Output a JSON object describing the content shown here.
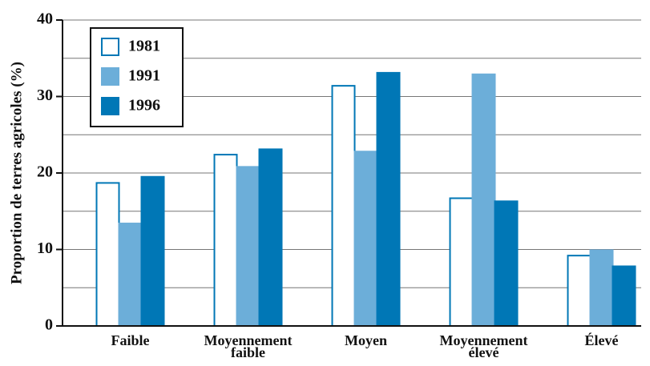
{
  "chart_data": {
    "type": "bar",
    "y_label": "Proportion de terres agricoles (%)",
    "categories": [
      "Faible",
      "Moyennement faible",
      "Moyen",
      "Moyennement élevé",
      "Élevé"
    ],
    "series": [
      {
        "name": "1981",
        "color": "#ffffff",
        "edge": "#0077b6",
        "values": [
          18.7,
          22.4,
          31.4,
          16.7,
          9.2
        ]
      },
      {
        "name": "1991",
        "color": "#6caed9",
        "edge": "#6caed9",
        "values": [
          13.4,
          20.8,
          22.8,
          32.9,
          9.9
        ]
      },
      {
        "name": "1996",
        "color": "#0077b6",
        "edge": "#0077b6",
        "values": [
          19.5,
          23.1,
          33.1,
          16.3,
          7.8
        ]
      }
    ],
    "ylim": [
      0,
      40
    ],
    "yticks": [
      0,
      10,
      20,
      30,
      40
    ],
    "minor_yticks": [
      5,
      15,
      25,
      35
    ],
    "grid": true,
    "legend": "upper left"
  }
}
